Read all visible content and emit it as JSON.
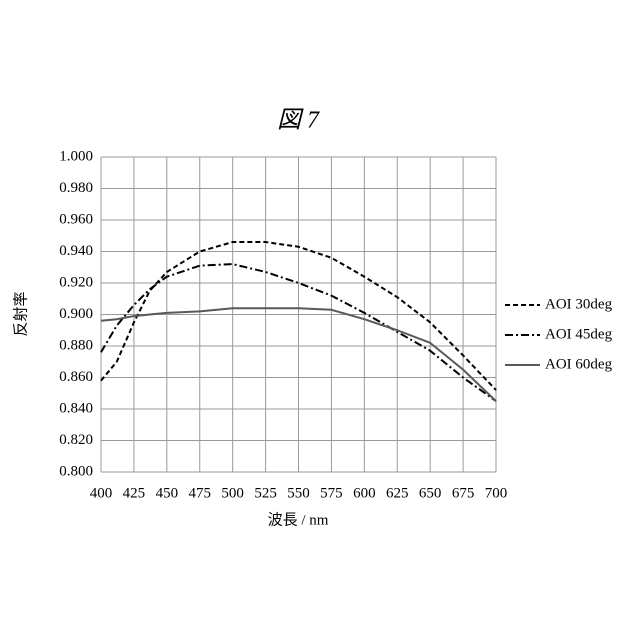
{
  "chart_data": {
    "type": "line",
    "title": "図 7",
    "x_label": "波長 / nm",
    "y_label": "反射率",
    "x": [
      400,
      412,
      425,
      437,
      450,
      475,
      500,
      525,
      550,
      575,
      600,
      625,
      650,
      675,
      700
    ],
    "series": [
      {
        "name": "AOI 30deg",
        "color": "#000000",
        "line_style": "dashed",
        "values": [
          0.858,
          0.87,
          0.895,
          0.915,
          0.927,
          0.94,
          0.946,
          0.946,
          0.943,
          0.936,
          0.924,
          0.911,
          0.895,
          0.874,
          0.852
        ]
      },
      {
        "name": "AOI 45deg",
        "color": "#000000",
        "line_style": "dash-dot",
        "values": [
          0.876,
          0.893,
          0.906,
          0.916,
          0.924,
          0.931,
          0.932,
          0.927,
          0.92,
          0.912,
          0.901,
          0.889,
          0.877,
          0.86,
          0.845
        ]
      },
      {
        "name": "AOI 60deg",
        "color": "#595959",
        "line_style": "solid",
        "values": [
          0.896,
          0.897,
          0.899,
          0.9,
          0.901,
          0.902,
          0.904,
          0.904,
          0.904,
          0.903,
          0.897,
          0.89,
          0.882,
          0.865,
          0.845
        ]
      }
    ],
    "xlim": [
      400,
      700
    ],
    "xticks": [
      400,
      425,
      450,
      475,
      500,
      525,
      550,
      575,
      600,
      625,
      650,
      675,
      700
    ],
    "ylim": [
      0.8,
      1.0
    ],
    "yticks": [
      {
        "value": 0.8,
        "label": "0.800"
      },
      {
        "value": 0.82,
        "label": "0.820"
      },
      {
        "value": 0.84,
        "label": "0.840"
      },
      {
        "value": 0.86,
        "label": "0.860"
      },
      {
        "value": 0.88,
        "label": "0.880"
      },
      {
        "value": 0.9,
        "label": "0.900"
      },
      {
        "value": 0.92,
        "label": "0.920"
      },
      {
        "value": 0.94,
        "label": "0.940"
      },
      {
        "value": 0.96,
        "label": "0.960"
      },
      {
        "value": 0.98,
        "label": "0.980"
      },
      {
        "value": 1.0,
        "label": "1.000"
      }
    ],
    "grid": true,
    "legend": "right"
  }
}
